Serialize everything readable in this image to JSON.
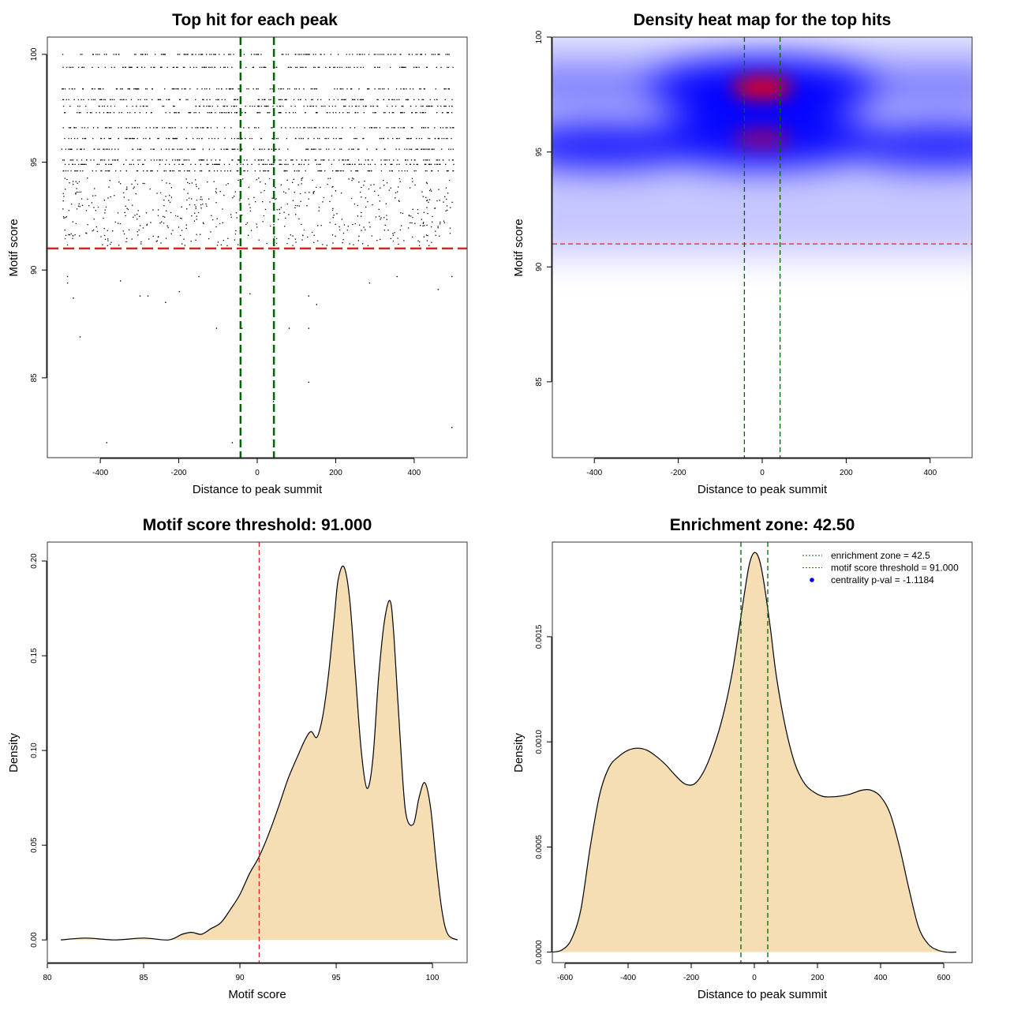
{
  "chart_data": [
    {
      "type": "scatter",
      "title": "Top hit for each peak",
      "xlabel": "Distance to peak summit",
      "ylabel": "Motif score",
      "xlim": [
        -535,
        535
      ],
      "ylim": [
        81.3,
        100.8
      ],
      "xticks": [
        -400,
        -200,
        0,
        200,
        400
      ],
      "yticks": [
        85,
        90,
        95,
        100
      ],
      "xtick_labels": [
        "-400",
        "-200",
        "0",
        "200",
        "400"
      ],
      "ytick_labels": [
        "85",
        "90",
        "95",
        "100"
      ],
      "grid": false,
      "score_levels": [
        100.0,
        99.4,
        98.4,
        97.9,
        97.6,
        97.3,
        96.6,
        96.1,
        95.6,
        95.1,
        94.9,
        94.6,
        94.1,
        93.7,
        93.3,
        92.9,
        92.5,
        92.1,
        91.7,
        91.3
      ],
      "sparse_points": [
        {
          "x": -485,
          "y": 89.7
        },
        {
          "x": -485,
          "y": 89.4
        },
        {
          "x": -470,
          "y": 88.7
        },
        {
          "x": -453,
          "y": 86.9
        },
        {
          "x": -385,
          "y": 82.0
        },
        {
          "x": -350,
          "y": 89.5
        },
        {
          "x": -300,
          "y": 88.8
        },
        {
          "x": -280,
          "y": 88.8
        },
        {
          "x": -235,
          "y": 88.5
        },
        {
          "x": -200,
          "y": 89.0
        },
        {
          "x": -150,
          "y": 89.7
        },
        {
          "x": -105,
          "y": 87.3
        },
        {
          "x": -65,
          "y": 82.0
        },
        {
          "x": -40,
          "y": 87.3
        },
        {
          "x": -20,
          "y": 88.9
        },
        {
          "x": 40,
          "y": 85.2
        },
        {
          "x": 40,
          "y": 83.9
        },
        {
          "x": 80,
          "y": 87.3
        },
        {
          "x": 130,
          "y": 87.3
        },
        {
          "x": 130,
          "y": 84.8
        },
        {
          "x": 130,
          "y": 88.8
        },
        {
          "x": 150,
          "y": 88.4
        },
        {
          "x": 285,
          "y": 89.4
        },
        {
          "x": 355,
          "y": 89.7
        },
        {
          "x": 460,
          "y": 89.1
        },
        {
          "x": 495,
          "y": 82.7
        },
        {
          "x": 495,
          "y": 89.7
        }
      ],
      "threshold": 91.0,
      "zone": [
        -42.5,
        42.5
      ]
    },
    {
      "type": "heatmap",
      "title": "Density heat map for the top hits",
      "xlabel": "Distance to peak summit",
      "ylabel": "Motif score",
      "xlim": [
        -500,
        500
      ],
      "ylim": [
        81.7,
        100.0
      ],
      "xticks": [
        -400,
        -200,
        0,
        200,
        400
      ],
      "yticks": [
        85,
        90,
        95,
        100
      ],
      "xtick_labels": [
        "-400",
        "-200",
        "0",
        "200",
        "400"
      ],
      "ytick_labels": [
        "85",
        "90",
        "95",
        "100"
      ],
      "colors": [
        "#ffffff",
        "#0000ff",
        "#ff0000"
      ],
      "threshold": 91.0,
      "zone": [
        -42.5,
        42.5
      ],
      "hotspots": [
        {
          "x": 0,
          "y": 97.8,
          "weight": 1.0
        },
        {
          "x": 0,
          "y": 95.6,
          "weight": 0.85
        },
        {
          "x": -380,
          "y": 95.3,
          "weight": 0.6
        },
        {
          "x": 420,
          "y": 95.3,
          "weight": 0.45
        }
      ]
    },
    {
      "type": "area",
      "title": "Motif score threshold: 91.000",
      "xlabel": "Motif score",
      "ylabel": "Density",
      "xlim": [
        80.0,
        101.8
      ],
      "ylim": [
        -0.012,
        0.21
      ],
      "xticks": [
        80,
        85,
        90,
        95,
        100
      ],
      "yticks": [
        0.0,
        0.05,
        0.1,
        0.15,
        0.2
      ],
      "xtick_labels": [
        "80",
        "85",
        "90",
        "95",
        "100"
      ],
      "ytick_labels": [
        "0.00",
        "0.05",
        "0.10",
        "0.15",
        "0.20"
      ],
      "fill": "#f5deb3",
      "x": [
        80.7,
        82.0,
        83.5,
        85.0,
        86.3,
        87.0,
        87.5,
        88.0,
        88.5,
        89.0,
        89.5,
        90.0,
        90.5,
        91.0,
        91.5,
        92.0,
        92.5,
        93.0,
        93.4,
        93.7,
        94.0,
        94.3,
        94.6,
        94.9,
        95.1,
        95.4,
        95.7,
        96.0,
        96.3,
        96.6,
        96.9,
        97.2,
        97.5,
        97.8,
        98.0,
        98.3,
        98.6,
        99.0,
        99.3,
        99.6,
        99.9,
        100.2,
        100.5,
        100.8,
        101.3
      ],
      "y": [
        0.0,
        0.001,
        0.0,
        0.001,
        0.0,
        0.003,
        0.004,
        0.003,
        0.006,
        0.009,
        0.016,
        0.024,
        0.035,
        0.044,
        0.056,
        0.07,
        0.085,
        0.097,
        0.106,
        0.11,
        0.107,
        0.118,
        0.14,
        0.17,
        0.19,
        0.197,
        0.18,
        0.14,
        0.1,
        0.08,
        0.095,
        0.138,
        0.168,
        0.179,
        0.16,
        0.11,
        0.068,
        0.061,
        0.075,
        0.083,
        0.07,
        0.04,
        0.015,
        0.003,
        0.0
      ],
      "threshold": 91.0
    },
    {
      "type": "area",
      "title": "Enrichment zone: 42.50",
      "xlabel": "Distance to peak summit",
      "ylabel": "Density",
      "xlim": [
        -640,
        690
      ],
      "ylim": [
        -5e-05,
        0.00195
      ],
      "xticks": [
        -600,
        -400,
        -200,
        0,
        200,
        400,
        600
      ],
      "yticks": [
        0.0,
        0.0005,
        0.001,
        0.0015
      ],
      "xtick_labels": [
        "-600",
        "-400",
        "-200",
        "0",
        "200",
        "400",
        "600"
      ],
      "ytick_labels": [
        "0.0000",
        "0.0005",
        "0.0010",
        "0.0015"
      ],
      "fill": "#f5deb3",
      "x": [
        -640,
        -610,
        -580,
        -550,
        -520,
        -490,
        -460,
        -430,
        -400,
        -370,
        -340,
        -310,
        -280,
        -250,
        -220,
        -190,
        -160,
        -130,
        -100,
        -70,
        -50,
        -30,
        -15,
        0,
        15,
        30,
        50,
        70,
        100,
        130,
        160,
        190,
        220,
        260,
        300,
        340,
        370,
        400,
        430,
        460,
        490,
        520,
        550,
        580,
        610,
        640
      ],
      "y": [
        0.0,
        1e-05,
        6e-05,
        0.0002,
        0.0005,
        0.00075,
        0.00088,
        0.00093,
        0.00096,
        0.00097,
        0.00096,
        0.00093,
        0.00089,
        0.00084,
        0.0008,
        0.0008,
        0.00086,
        0.00097,
        0.00112,
        0.00133,
        0.00152,
        0.00172,
        0.00185,
        0.0019,
        0.00187,
        0.00176,
        0.00155,
        0.00131,
        0.00106,
        0.00089,
        0.0008,
        0.00076,
        0.00074,
        0.00074,
        0.00075,
        0.00077,
        0.00077,
        0.00074,
        0.00066,
        0.0005,
        0.0003,
        0.00012,
        4e-05,
        1e-05,
        0.0,
        0.0
      ],
      "zone": [
        -42.5,
        42.5
      ],
      "legend": [
        {
          "label": "enrichment zone = 42.5",
          "color": "#006400",
          "style": "dotted"
        },
        {
          "label": "motif score threshold = 91.000",
          "color": "#ff0000",
          "style": "dotted"
        },
        {
          "label": "centrality p-val = -1.1184",
          "color": "#0000ff",
          "style": "point"
        }
      ],
      "legend_position": "top-right"
    }
  ]
}
